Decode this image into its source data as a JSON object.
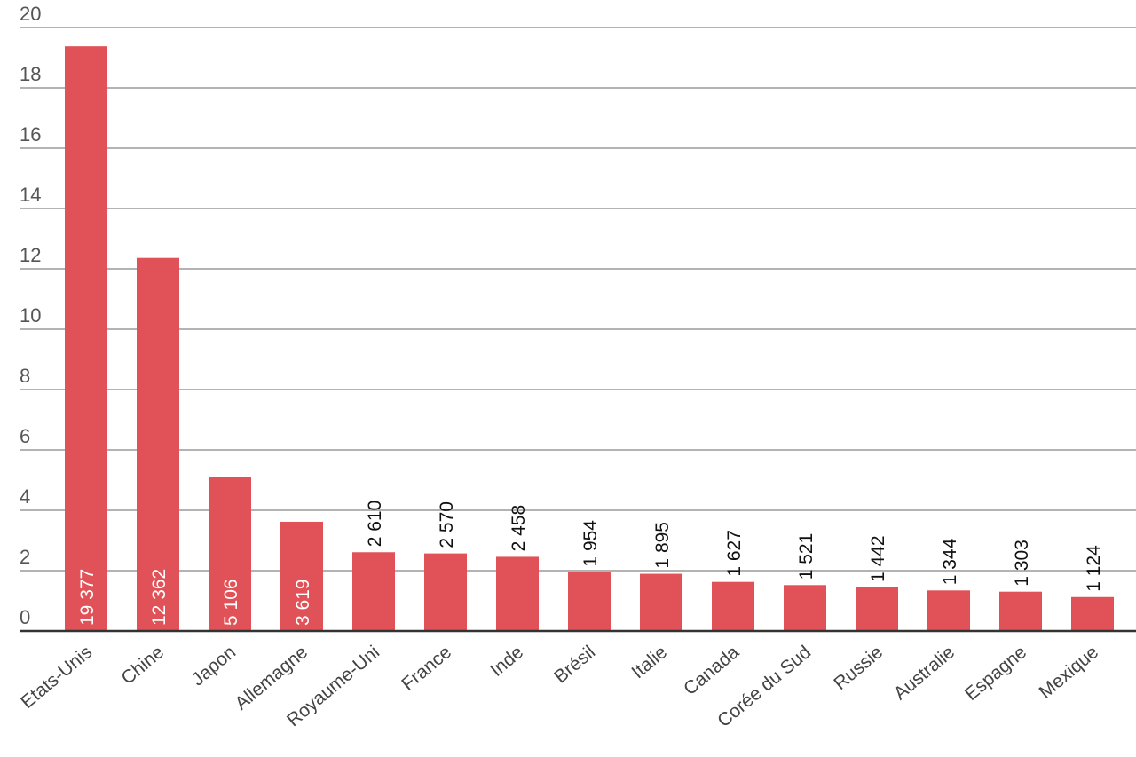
{
  "chart_data": {
    "type": "bar",
    "categories": [
      "Etats-Unis",
      "Chine",
      "Japon",
      "Allemagne",
      "Royaume-Uni",
      "France",
      "Inde",
      "Brésil",
      "Italie",
      "Canada",
      "Corée du Sud",
      "Russie",
      "Australie",
      "Espagne",
      "Mexique"
    ],
    "values": [
      19.377,
      12.362,
      5.106,
      3.619,
      2.61,
      2.57,
      2.458,
      1.954,
      1.895,
      1.627,
      1.521,
      1.442,
      1.344,
      1.303,
      1.124
    ],
    "value_labels": [
      "19 377",
      "12 362",
      "5 106",
      "3 619",
      "2 610",
      "2 570",
      "2 458",
      "1 954",
      "1 895",
      "1 627",
      "1 521",
      "1 442",
      "1 344",
      "1 303",
      "1 124"
    ],
    "color": "#e05257",
    "ylim": [
      0,
      20
    ],
    "yticks": [
      0,
      2,
      4,
      6,
      8,
      10,
      12,
      14,
      16,
      18,
      20
    ],
    "grid": true
  }
}
